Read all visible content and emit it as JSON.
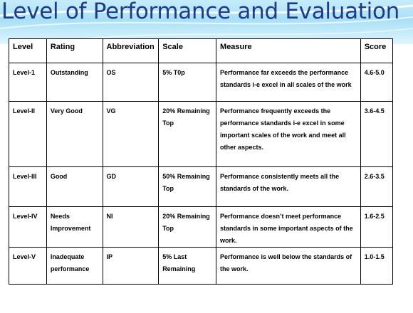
{
  "title": "Level of Performance and Evaluation",
  "table": {
    "headers": [
      "Level",
      "Rating",
      "Abbreviation",
      "Scale",
      "Measure",
      "Score"
    ],
    "rows": [
      [
        "Level-1",
        "Outstanding",
        "OS",
        "5% T0p",
        "Performance far exceeds the performance standards i-e excel in all scales of the work",
        "4.6-5.0"
      ],
      [
        "Level-II",
        "Very Good",
        "VG",
        "20% Remaining Top",
        "Performance frequently exceeds the performance standards i-e excel in some important scales of the work and meet all other aspects.",
        "3.6-4.5"
      ],
      [
        "Level-III",
        "Good",
        "GD",
        "50% Remaining Top",
        "Performance consistently meets all the standards of the work.",
        "2.6-3.5"
      ],
      [
        "Level-IV",
        "Needs Improvement",
        "NI",
        "20% Remaining Top",
        "Performance doesn’t meet performance standards in some important aspects of the work.",
        "1.6-2.5"
      ],
      [
        "Level-V",
        "Inadequate performance",
        "IP",
        "5% Last Remaining",
        "Performance is well below the standards of the work.",
        "1.0-1.5"
      ]
    ]
  }
}
